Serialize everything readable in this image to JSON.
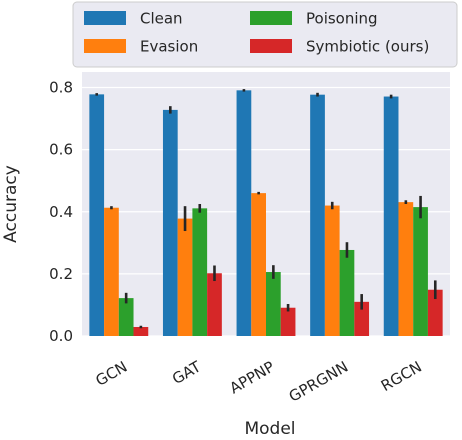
{
  "chart_data": {
    "type": "bar",
    "xlabel": "Model",
    "ylabel": "Accuracy",
    "ylim": [
      0.0,
      0.85
    ],
    "yticks": [
      0.0,
      0.2,
      0.4,
      0.6,
      0.8
    ],
    "ytick_labels": [
      "0.0",
      "0.2",
      "0.4",
      "0.6",
      "0.8"
    ],
    "grid": true,
    "legend_position": "top",
    "categories": [
      "GCN",
      "GAT",
      "APPNP",
      "GPRGNN",
      "RGCN"
    ],
    "series": [
      {
        "name": "Clean",
        "color": "#1f77b4",
        "values": [
          0.778,
          0.728,
          0.791,
          0.777,
          0.771
        ],
        "errors": [
          0.004,
          0.012,
          0.004,
          0.006,
          0.006
        ]
      },
      {
        "name": "Evasion",
        "color": "#ff7f0e",
        "values": [
          0.413,
          0.378,
          0.46,
          0.42,
          0.431
        ],
        "errors": [
          0.005,
          0.04,
          0.004,
          0.012,
          0.006
        ]
      },
      {
        "name": "Poisoning",
        "color": "#2ca02c",
        "values": [
          0.122,
          0.411,
          0.206,
          0.277,
          0.415
        ],
        "errors": [
          0.017,
          0.014,
          0.022,
          0.025,
          0.036
        ]
      },
      {
        "name": "Symbiotic (ours)",
        "color": "#d62728",
        "values": [
          0.029,
          0.202,
          0.091,
          0.11,
          0.149
        ],
        "errors": [
          0.004,
          0.025,
          0.012,
          0.025,
          0.03
        ]
      }
    ]
  }
}
